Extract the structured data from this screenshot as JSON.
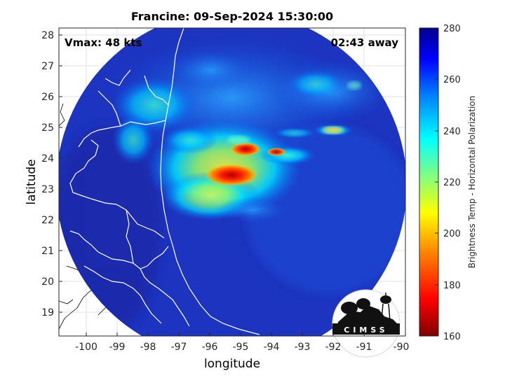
{
  "title": "Francine: 09-Sep-2024 15:30:00",
  "annotations": {
    "vmax": "Vmax: 48 kts",
    "away": "02:43 away"
  },
  "axes": {
    "xlabel": "longitude",
    "ylabel": "latitude",
    "xticks": [
      "-100",
      "-99",
      "-98",
      "-97",
      "-96",
      "-95",
      "-94",
      "-93",
      "-92",
      "-91",
      "-90"
    ],
    "yticks": [
      "28",
      "27",
      "26",
      "25",
      "24",
      "23",
      "22",
      "21",
      "20",
      "19"
    ]
  },
  "colorbar": {
    "label": "Brightness Temp - Horizontal Polarization",
    "ticks": [
      "280",
      "260",
      "240",
      "220",
      "200",
      "180",
      "160"
    ],
    "range": [
      160,
      280
    ]
  },
  "logo": {
    "text": "CIMSS"
  },
  "colors": {
    "cold_core": "#8b0000",
    "warm_background": "#1a2fb8"
  }
}
